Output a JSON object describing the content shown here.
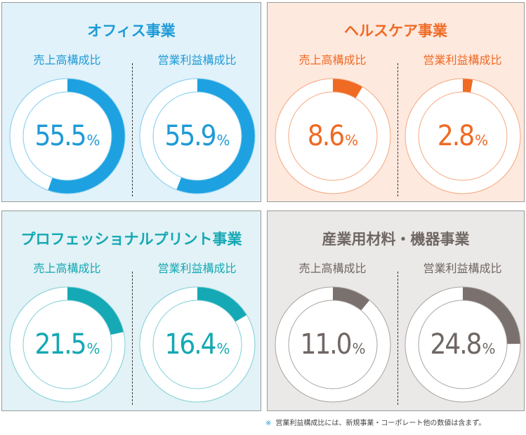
{
  "chart_data": [
    {
      "type": "pie",
      "title": "オフィス事業",
      "colors": {
        "accent": "#1da1e0",
        "panel_bg": "#e2f2fa",
        "title": "#1e9ad6",
        "ring": "#7ccbef"
      },
      "charts": [
        {
          "label": "売上高構成比",
          "value": 55.5,
          "display": "55.5",
          "unit": "%"
        },
        {
          "label": "営業利益構成比",
          "value": 55.9,
          "display": "55.9",
          "unit": "%"
        }
      ]
    },
    {
      "type": "pie",
      "title": "ヘルスケア事業",
      "colors": {
        "accent": "#ef6a23",
        "panel_bg": "#fee9df",
        "title": "#ee6a24",
        "ring": "#f5a77d"
      },
      "charts": [
        {
          "label": "売上高構成比",
          "value": 8.6,
          "display": "8.6",
          "unit": "%"
        },
        {
          "label": "営業利益構成比",
          "value": 2.8,
          "display": "2.8",
          "unit": "%"
        }
      ]
    },
    {
      "type": "pie",
      "title": "プロフェッショナルプリント事業",
      "colors": {
        "accent": "#14a9b4",
        "panel_bg": "#e2f2f6",
        "title": "#14a8b3",
        "ring": "#7fcfd6"
      },
      "charts": [
        {
          "label": "売上高構成比",
          "value": 21.5,
          "display": "21.5",
          "unit": "%"
        },
        {
          "label": "営業利益構成比",
          "value": 16.4,
          "display": "16.4",
          "unit": "%"
        }
      ]
    },
    {
      "type": "pie",
      "title": "産業用材料・機器事業",
      "colors": {
        "accent": "#7a716e",
        "panel_bg": "#ebe9e8",
        "title": "#6f6764",
        "ring": "#a9a3a0"
      },
      "charts": [
        {
          "label": "売上高構成比",
          "value": 11.0,
          "display": "11.0",
          "unit": "%"
        },
        {
          "label": "営業利益構成比",
          "value": 24.8,
          "display": "24.8",
          "unit": "%"
        }
      ]
    }
  ],
  "footnote": {
    "mark": "※",
    "text": "営業利益構成比には、新規事業・コーポレート他の数値は含まず。"
  }
}
